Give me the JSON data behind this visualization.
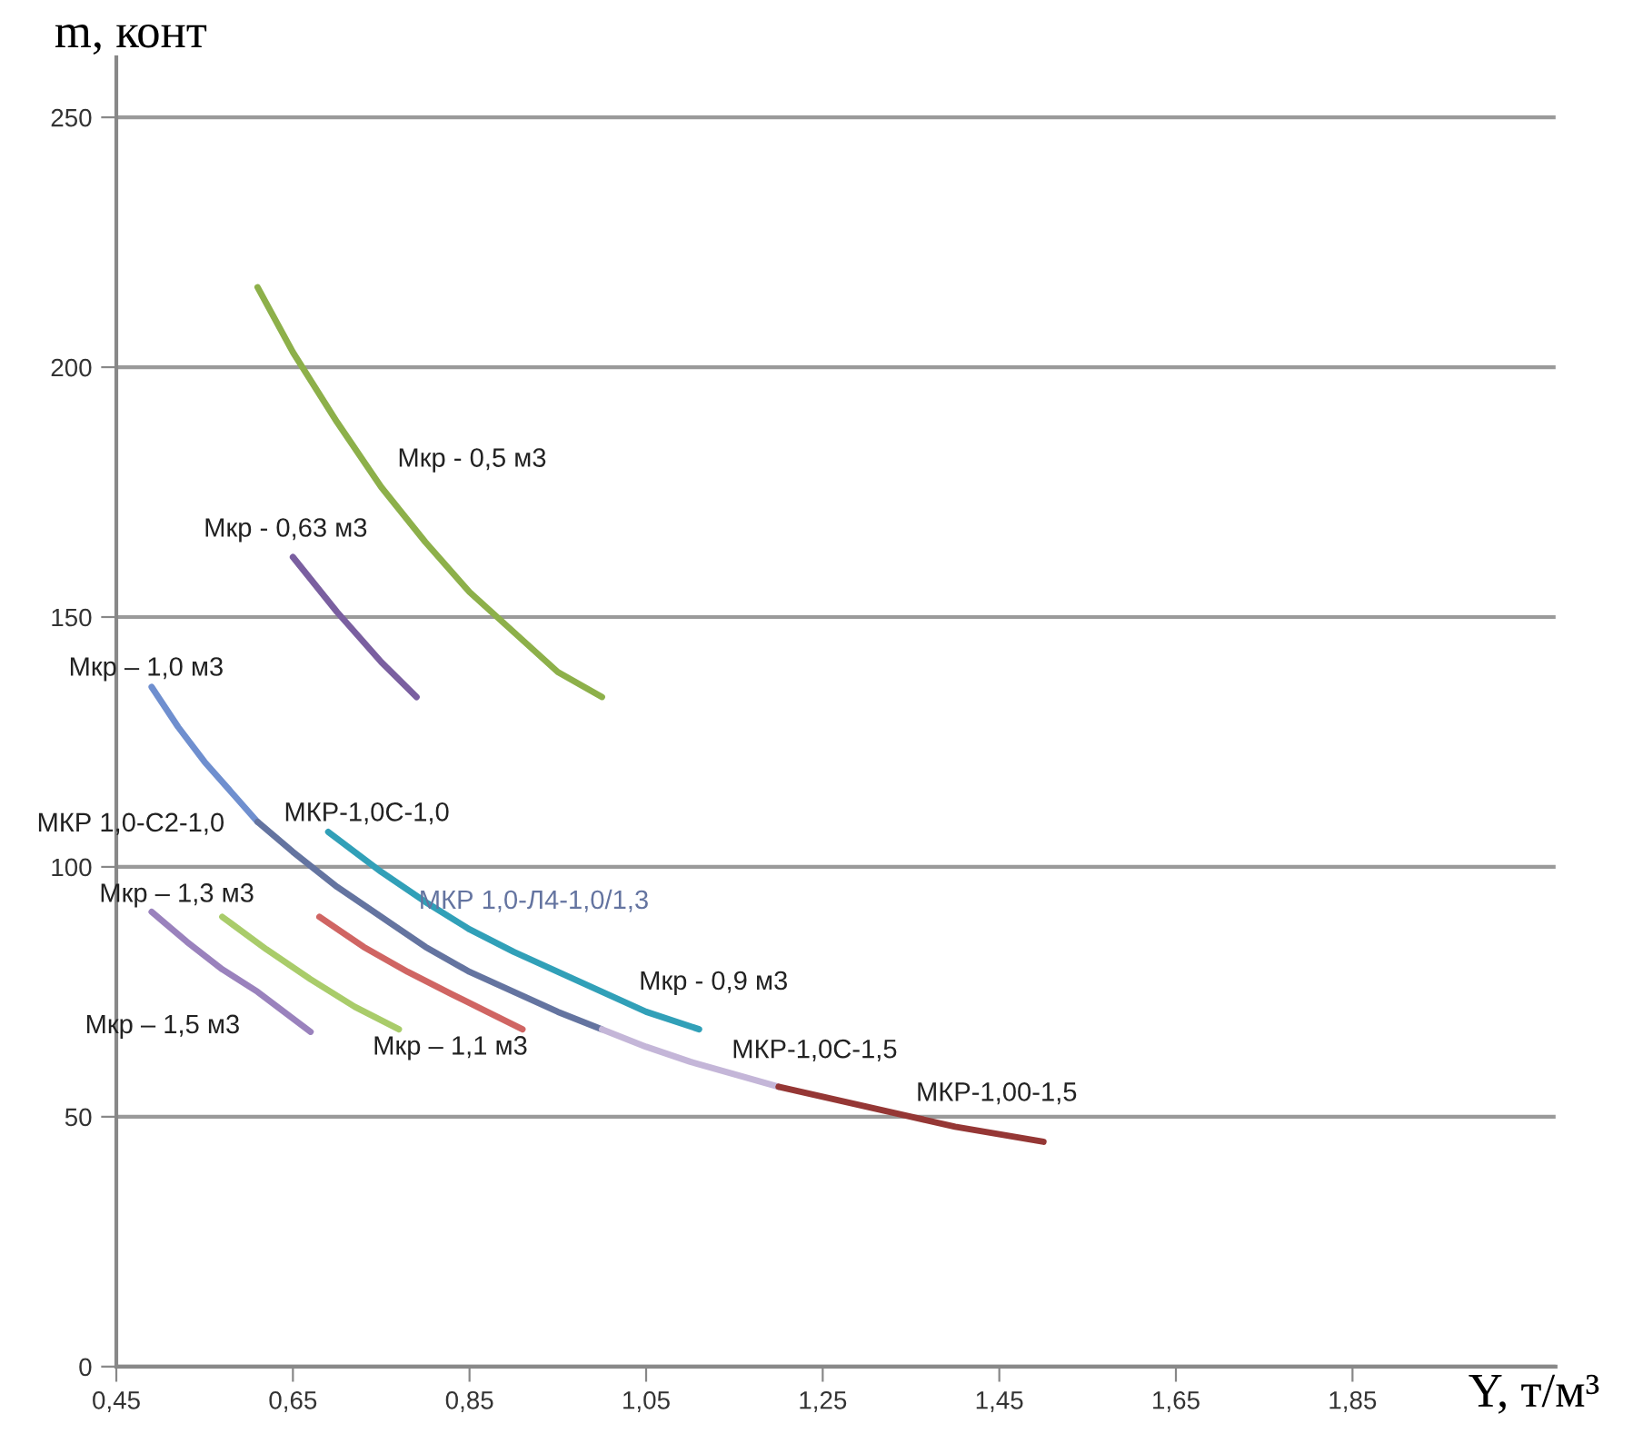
{
  "chart_data": {
    "type": "line",
    "xlabel": "Y, т/м³",
    "ylabel": "m, конт",
    "xlim": [
      0.45,
      2.08
    ],
    "ylim": [
      0,
      262
    ],
    "xticks": [
      {
        "value": 0.45,
        "label": "0,45"
      },
      {
        "value": 0.65,
        "label": "0,65"
      },
      {
        "value": 0.85,
        "label": "0,85"
      },
      {
        "value": 1.05,
        "label": "1,05"
      },
      {
        "value": 1.25,
        "label": "1,25"
      },
      {
        "value": 1.45,
        "label": "1,45"
      },
      {
        "value": 1.65,
        "label": "1,65"
      },
      {
        "value": 1.85,
        "label": "1,85"
      }
    ],
    "yticks": [
      0,
      50,
      100,
      150,
      200,
      250
    ],
    "grid": "y",
    "marker": "none",
    "line_style": "solid",
    "series": [
      {
        "name": "Мкр - 0,5 м3",
        "color": "#8db04a",
        "x": [
          0.61,
          0.65,
          0.7,
          0.75,
          0.8,
          0.85,
          0.9,
          0.95,
          1.0
        ],
        "values": [
          216,
          203,
          189,
          176,
          165,
          155,
          147,
          139,
          134
        ]
      },
      {
        "name": "Мкр - 0,63 м3",
        "color": "#7a5fa0",
        "x": [
          0.65,
          0.7,
          0.75,
          0.79
        ],
        "values": [
          162,
          151,
          141,
          134
        ]
      },
      {
        "name": "Мкр – 1,0 м3",
        "color": "#6f8fcf",
        "x": [
          0.49,
          0.52,
          0.55,
          0.58,
          0.61
        ],
        "values": [
          136,
          128,
          121,
          115,
          109
        ]
      },
      {
        "name": "МКР 1,0-Л4-1,0/1,3",
        "color": "#6474a0",
        "x": [
          0.61,
          0.65,
          0.7,
          0.75,
          0.8,
          0.85,
          0.9,
          0.95,
          1.0
        ],
        "values": [
          109,
          103,
          96,
          90,
          84,
          79,
          75,
          71,
          67.5
        ]
      },
      {
        "name": "МКР-1,0С-1,5",
        "color": "#c4b6d8",
        "x": [
          1.0,
          1.05,
          1.1,
          1.15,
          1.2
        ],
        "values": [
          67.5,
          64,
          61,
          58.5,
          56
        ]
      },
      {
        "name": "МКР-1,00-1,5",
        "color": "#953735",
        "x": [
          1.2,
          1.25,
          1.3,
          1.35,
          1.4,
          1.45,
          1.5
        ],
        "values": [
          56,
          54,
          52,
          50,
          48,
          46.5,
          45
        ]
      },
      {
        "name": "Мкр - 0,9 м3",
        "color": "#31a0b8",
        "x": [
          0.69,
          0.75,
          0.8,
          0.85,
          0.9,
          0.95,
          1.0,
          1.05,
          1.11
        ],
        "values": [
          107,
          99,
          93,
          87.5,
          83,
          79,
          75,
          71,
          67.5
        ]
      },
      {
        "name": "Мкр – 1,3 м3",
        "color": "#a9cc6a",
        "x": [
          0.57,
          0.62,
          0.67,
          0.72,
          0.77
        ],
        "values": [
          90,
          83.5,
          77.5,
          72,
          67.5
        ]
      },
      {
        "name": "Мкр – 1,5 м3",
        "color": "#9a82bd",
        "x": [
          0.49,
          0.53,
          0.57,
          0.61,
          0.67
        ],
        "values": [
          91,
          85,
          79.5,
          75,
          67
        ]
      },
      {
        "name": "Мкр – 1,1 м3",
        "color": "#d06563",
        "x": [
          0.68,
          0.73,
          0.78,
          0.83,
          0.87,
          0.91
        ],
        "values": [
          90,
          84,
          79,
          74.5,
          71,
          67.5
        ]
      }
    ],
    "annotations": [
      "МКР 1,0-С2-1,0",
      "МКР-1,0С-1,0"
    ]
  }
}
